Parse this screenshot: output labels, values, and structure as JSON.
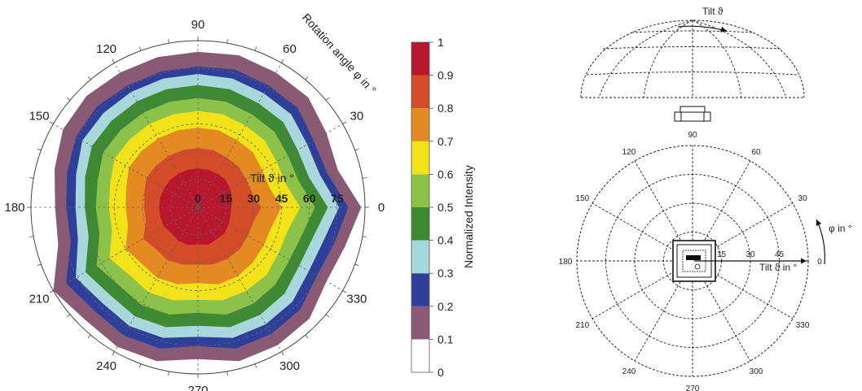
{
  "chart_data": [
    {
      "type": "heatmap",
      "subtype": "polar-contour",
      "angle_unit": "degree",
      "angle_ticks": [
        "0",
        "30",
        "60",
        "90",
        "120",
        "150",
        "180",
        "210",
        "240",
        "270",
        "300",
        "330"
      ],
      "radial_ticks": [
        "0",
        "15",
        "30",
        "45",
        "60",
        "75"
      ],
      "radial_label": "Tilt ϑ in °",
      "angle_label": "Rotation angle φ in °",
      "colorbar": {
        "label": "Normalized Intensity",
        "ticks": [
          "0",
          "0.1",
          "0.2",
          "0.3",
          "0.4",
          "0.5",
          "0.6",
          "0.7",
          "0.8",
          "0.9",
          "1"
        ],
        "levels": [
          0,
          0.1,
          0.2,
          0.3,
          0.4,
          0.5,
          0.6,
          0.7,
          0.8,
          0.9,
          1
        ],
        "colors": [
          "#ffffff",
          "#8a5a74",
          "#2e3f99",
          "#a9d8dc",
          "#3e8a32",
          "#8cc24a",
          "#f2e21a",
          "#e38a22",
          "#d44c28",
          "#b8162c"
        ]
      },
      "contours": [
        {
          "level": 0.1,
          "radius_deg": [
            88,
            78,
            80,
            84,
            84,
            85,
            84,
            84,
            84,
            85,
            84,
            80,
            77,
            78,
            90,
            86,
            87,
            86,
            82,
            86,
            86,
            85,
            80,
            82
          ]
        },
        {
          "level": 0.2,
          "radius_deg": [
            81,
            72,
            72,
            76,
            76,
            77,
            76,
            76,
            76,
            77,
            76,
            73,
            71,
            71,
            82,
            79,
            80,
            79,
            75,
            79,
            79,
            78,
            74,
            76
          ]
        },
        {
          "level": 0.3,
          "radius_deg": [
            76,
            68,
            68,
            71,
            71,
            72,
            72,
            72,
            72,
            72,
            72,
            68,
            66,
            67,
            76,
            73,
            74,
            73,
            70,
            73,
            73,
            72,
            69,
            70
          ]
        },
        {
          "level": 0.4,
          "radius_deg": [
            70,
            62,
            62,
            65,
            65,
            66,
            66,
            66,
            66,
            66,
            66,
            63,
            61,
            61,
            70,
            67,
            68,
            67,
            64,
            67,
            67,
            66,
            63,
            64
          ]
        },
        {
          "level": 0.5,
          "radius_deg": [
            63,
            56,
            56,
            58,
            58,
            59,
            59,
            59,
            59,
            59,
            59,
            56,
            55,
            55,
            63,
            60,
            61,
            60,
            57,
            60,
            60,
            59,
            57,
            58
          ]
        },
        {
          "level": 0.6,
          "radius_deg": [
            55,
            49,
            49,
            51,
            51,
            52,
            52,
            52,
            52,
            52,
            52,
            49,
            48,
            48,
            55,
            52,
            53,
            52,
            50,
            52,
            52,
            52,
            50,
            50
          ]
        },
        {
          "level": 0.7,
          "radius_deg": [
            45,
            40,
            40,
            42,
            42,
            43,
            43,
            43,
            43,
            43,
            43,
            40,
            39,
            39,
            45,
            43,
            44,
            43,
            41,
            43,
            43,
            42,
            41,
            41
          ]
        },
        {
          "level": 0.8,
          "radius_deg": [
            34,
            30,
            30,
            31,
            31,
            32,
            32,
            32,
            32,
            32,
            32,
            30,
            29,
            29,
            34,
            32,
            33,
            32,
            31,
            32,
            32,
            32,
            31,
            31
          ]
        },
        {
          "level": 0.9,
          "radius_deg": [
            18,
            19,
            20,
            21,
            21,
            21,
            21,
            21,
            21,
            21,
            21,
            21,
            21,
            21,
            21,
            20,
            21,
            21,
            20,
            21,
            20,
            20,
            19,
            18
          ]
        }
      ]
    },
    {
      "type": "other",
      "subtype": "polar-grid-schematic",
      "angle_ticks": [
        "0",
        "30",
        "60",
        "90",
        "120",
        "150",
        "180",
        "210",
        "240",
        "270",
        "300",
        "330"
      ],
      "radial_ticks": [
        "15",
        "30",
        "45"
      ],
      "radial_label": "Tilt ϑ in °",
      "angle_label": "φ in °",
      "dome_label": "Tilt ϑ"
    }
  ]
}
